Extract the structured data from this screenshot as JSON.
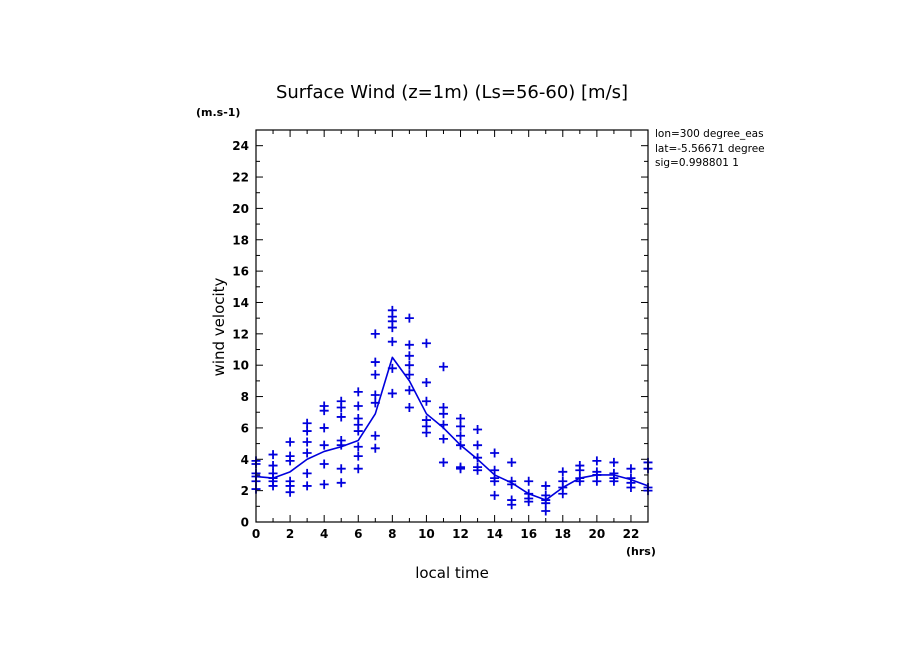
{
  "chart_data": {
    "type": "scatter",
    "title": "Surface Wind (z=1m) (Ls=56-60) [m/s]",
    "y_unit_label": "(m.s-1)",
    "x_unit_label": "(hrs)",
    "xlabel": "local time",
    "ylabel": "wind velocity",
    "xlim": [
      0,
      23
    ],
    "ylim": [
      0,
      25
    ],
    "x_ticks": [
      0,
      2,
      4,
      6,
      8,
      10,
      12,
      14,
      16,
      18,
      20,
      22
    ],
    "y_ticks": [
      0,
      2,
      4,
      6,
      8,
      10,
      12,
      14,
      16,
      18,
      20,
      22,
      24
    ],
    "grid": false,
    "info_lines": [
      "lon=300 degree_eas",
      "lat=-5.56671 degree",
      "sig=0.998801 1"
    ],
    "colors": {
      "series": "#0000dd",
      "axes": "#000000"
    },
    "series": [
      {
        "kind": "line",
        "x": [
          0,
          1,
          2,
          3,
          4,
          5,
          6,
          7,
          8,
          9,
          10,
          11,
          12,
          13,
          14,
          15,
          16,
          17,
          18,
          19,
          20,
          21,
          22,
          23
        ],
        "values": [
          2.9,
          2.8,
          3.2,
          4.0,
          4.5,
          4.8,
          5.2,
          6.9,
          10.5,
          9.0,
          6.9,
          6.0,
          4.9,
          4.0,
          3.0,
          2.5,
          1.8,
          1.4,
          2.2,
          2.8,
          3.0,
          3.0,
          2.7,
          2.3
        ]
      },
      {
        "kind": "markers",
        "marker": "+",
        "points": [
          [
            0,
            3.9
          ],
          [
            0,
            3.7
          ],
          [
            0,
            3.1
          ],
          [
            0,
            2.9
          ],
          [
            0,
            2.6
          ],
          [
            0,
            2.1
          ],
          [
            1,
            4.3
          ],
          [
            1,
            3.6
          ],
          [
            1,
            3.1
          ],
          [
            1,
            2.8
          ],
          [
            1,
            2.6
          ],
          [
            1,
            2.3
          ],
          [
            2,
            5.1
          ],
          [
            2,
            4.2
          ],
          [
            2,
            3.9
          ],
          [
            2,
            2.6
          ],
          [
            2,
            2.3
          ],
          [
            2,
            1.9
          ],
          [
            3,
            6.3
          ],
          [
            3,
            5.8
          ],
          [
            3,
            5.1
          ],
          [
            3,
            4.4
          ],
          [
            3,
            3.1
          ],
          [
            3,
            2.3
          ],
          [
            4,
            7.4
          ],
          [
            4,
            7.1
          ],
          [
            4,
            6.0
          ],
          [
            4,
            4.9
          ],
          [
            4,
            3.7
          ],
          [
            4,
            2.4
          ],
          [
            5,
            7.7
          ],
          [
            5,
            7.3
          ],
          [
            5,
            6.7
          ],
          [
            5,
            5.2
          ],
          [
            5,
            4.9
          ],
          [
            5,
            3.4
          ],
          [
            5,
            2.5
          ],
          [
            6,
            8.3
          ],
          [
            6,
            7.4
          ],
          [
            6,
            6.6
          ],
          [
            6,
            6.2
          ],
          [
            6,
            5.8
          ],
          [
            6,
            4.8
          ],
          [
            6,
            4.2
          ],
          [
            6,
            3.4
          ],
          [
            7,
            12.0
          ],
          [
            7,
            10.2
          ],
          [
            7,
            9.4
          ],
          [
            7,
            8.1
          ],
          [
            7,
            7.6
          ],
          [
            7,
            5.5
          ],
          [
            7,
            4.7
          ],
          [
            8,
            13.5
          ],
          [
            8,
            13.1
          ],
          [
            8,
            12.8
          ],
          [
            8,
            12.4
          ],
          [
            8,
            11.5
          ],
          [
            8,
            9.8
          ],
          [
            8,
            8.2
          ],
          [
            9,
            13.0
          ],
          [
            9,
            11.3
          ],
          [
            9,
            10.6
          ],
          [
            9,
            10.0
          ],
          [
            9,
            9.4
          ],
          [
            9,
            8.4
          ],
          [
            9,
            7.3
          ],
          [
            10,
            11.4
          ],
          [
            10,
            8.9
          ],
          [
            10,
            7.7
          ],
          [
            10,
            6.5
          ],
          [
            10,
            6.1
          ],
          [
            10,
            5.7
          ],
          [
            11,
            9.9
          ],
          [
            11,
            7.3
          ],
          [
            11,
            6.9
          ],
          [
            11,
            6.2
          ],
          [
            11,
            5.3
          ],
          [
            11,
            3.8
          ],
          [
            12,
            6.6
          ],
          [
            12,
            6.1
          ],
          [
            12,
            5.5
          ],
          [
            12,
            4.9
          ],
          [
            12,
            3.5
          ],
          [
            12,
            3.4
          ],
          [
            13,
            5.9
          ],
          [
            13,
            4.9
          ],
          [
            13,
            4.1
          ],
          [
            13,
            3.5
          ],
          [
            13,
            3.3
          ],
          [
            14,
            4.4
          ],
          [
            14,
            3.3
          ],
          [
            14,
            2.8
          ],
          [
            14,
            2.6
          ],
          [
            14,
            1.7
          ],
          [
            15,
            3.8
          ],
          [
            15,
            2.6
          ],
          [
            15,
            2.4
          ],
          [
            15,
            1.4
          ],
          [
            15,
            1.1
          ],
          [
            16,
            2.6
          ],
          [
            16,
            1.8
          ],
          [
            16,
            1.5
          ],
          [
            16,
            1.3
          ],
          [
            17,
            2.3
          ],
          [
            17,
            1.7
          ],
          [
            17,
            1.4
          ],
          [
            17,
            1.2
          ],
          [
            17,
            0.7
          ],
          [
            18,
            3.2
          ],
          [
            18,
            2.6
          ],
          [
            18,
            2.2
          ],
          [
            18,
            1.8
          ],
          [
            19,
            3.6
          ],
          [
            19,
            3.3
          ],
          [
            19,
            2.8
          ],
          [
            19,
            2.6
          ],
          [
            20,
            3.9
          ],
          [
            20,
            3.2
          ],
          [
            20,
            3.0
          ],
          [
            20,
            2.6
          ],
          [
            21,
            3.8
          ],
          [
            21,
            3.1
          ],
          [
            21,
            2.8
          ],
          [
            21,
            2.6
          ],
          [
            22,
            3.4
          ],
          [
            22,
            2.8
          ],
          [
            22,
            2.5
          ],
          [
            22,
            2.2
          ],
          [
            23,
            3.8
          ],
          [
            23,
            3.4
          ],
          [
            23,
            2.2
          ],
          [
            23,
            2.0
          ]
        ]
      }
    ]
  }
}
